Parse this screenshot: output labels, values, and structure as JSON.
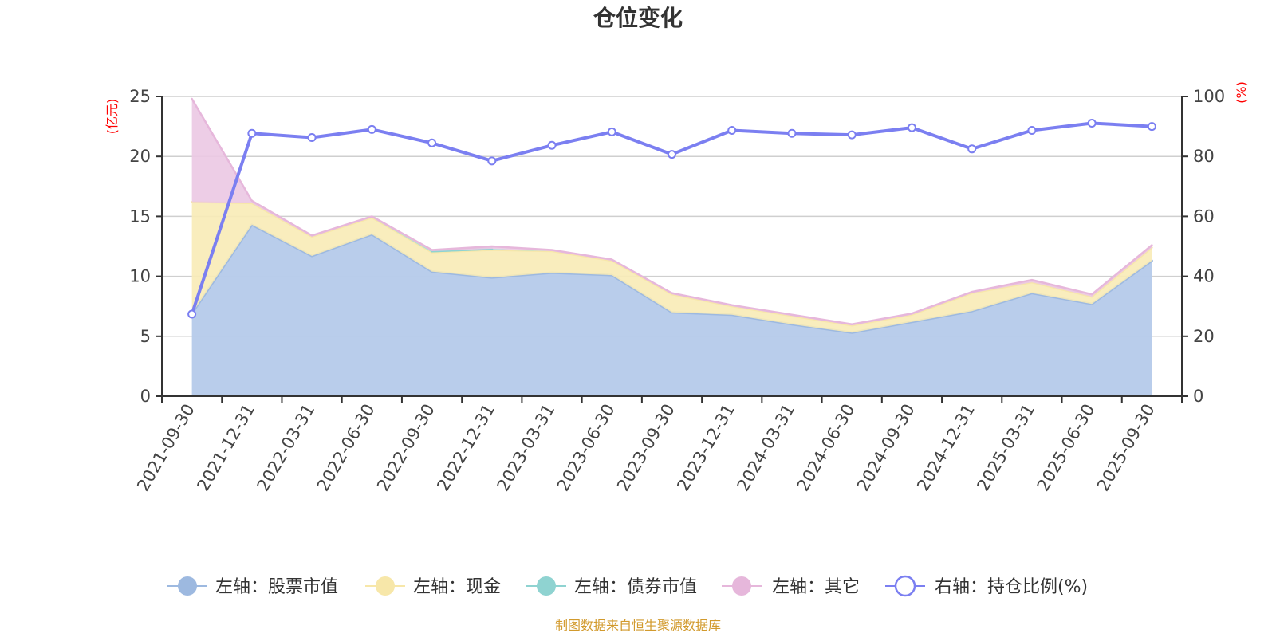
{
  "chart_data": {
    "type": "area",
    "title": "仓位变化",
    "categories": [
      "2021-09-30",
      "2021-12-31",
      "2022-03-31",
      "2022-06-30",
      "2022-09-30",
      "2022-12-31",
      "2023-03-31",
      "2023-06-30",
      "2023-09-30",
      "2023-12-31",
      "2024-03-31",
      "2024-06-30",
      "2024-09-30",
      "2024-12-31",
      "2025-03-31",
      "2025-06-30",
      "2025-09-30"
    ],
    "left_axis": {
      "unit_label": "(亿元)",
      "ylim": [
        0,
        25
      ],
      "ticks": [
        "0",
        "5",
        "10",
        "15",
        "20",
        "25"
      ]
    },
    "right_axis": {
      "unit_label": "(%)",
      "ylim": [
        0,
        100
      ],
      "ticks": [
        "0",
        "20",
        "40",
        "60",
        "80",
        "100"
      ]
    },
    "series": [
      {
        "key": "stock",
        "name": "左轴：股票市值",
        "axis": "left",
        "stack": true,
        "color": "#9db9e0",
        "area_color": "#b8cceb",
        "values": [
          6.9,
          14.3,
          11.7,
          13.5,
          10.4,
          9.9,
          10.3,
          10.1,
          7.0,
          6.8,
          6.0,
          5.3,
          6.2,
          7.1,
          8.6,
          7.7,
          11.3
        ]
      },
      {
        "key": "cash",
        "name": "左轴：现金",
        "axis": "left",
        "stack": true,
        "color": "#f7e7a9",
        "area_color": "#f8ebb6",
        "values": [
          9.3,
          1.8,
          1.6,
          1.4,
          1.6,
          2.3,
          1.8,
          1.2,
          1.5,
          0.7,
          0.7,
          0.6,
          0.6,
          1.5,
          0.9,
          0.6,
          1.1
        ]
      },
      {
        "key": "bond",
        "name": "左轴：债券市值",
        "axis": "left",
        "stack": true,
        "color": "#8fd3d1",
        "area_color": "#a4dfdb",
        "values": [
          0,
          0,
          0,
          0,
          0.1,
          0.1,
          0,
          0,
          0,
          0,
          0,
          0,
          0,
          0,
          0,
          0,
          0
        ]
      },
      {
        "key": "other",
        "name": "左轴：其它",
        "axis": "left",
        "stack": true,
        "color": "#e6b7db",
        "area_color": "#ebc8e3",
        "values": [
          8.6,
          0.2,
          0.1,
          0.1,
          0.1,
          0.2,
          0.1,
          0.1,
          0.1,
          0.1,
          0.1,
          0.1,
          0.1,
          0.1,
          0.2,
          0.2,
          0.2
        ]
      },
      {
        "key": "ratio",
        "name": "右轴：持仓比例(%)",
        "axis": "right",
        "type": "line",
        "color": "#7b7ff1",
        "values": [
          27.4,
          87.7,
          86.3,
          89.0,
          84.5,
          78.5,
          83.7,
          88.2,
          80.7,
          88.7,
          87.7,
          87.2,
          89.6,
          82.5,
          88.7,
          91.1,
          90.0
        ]
      }
    ],
    "source": "制图数据来自恒生聚源数据库"
  }
}
